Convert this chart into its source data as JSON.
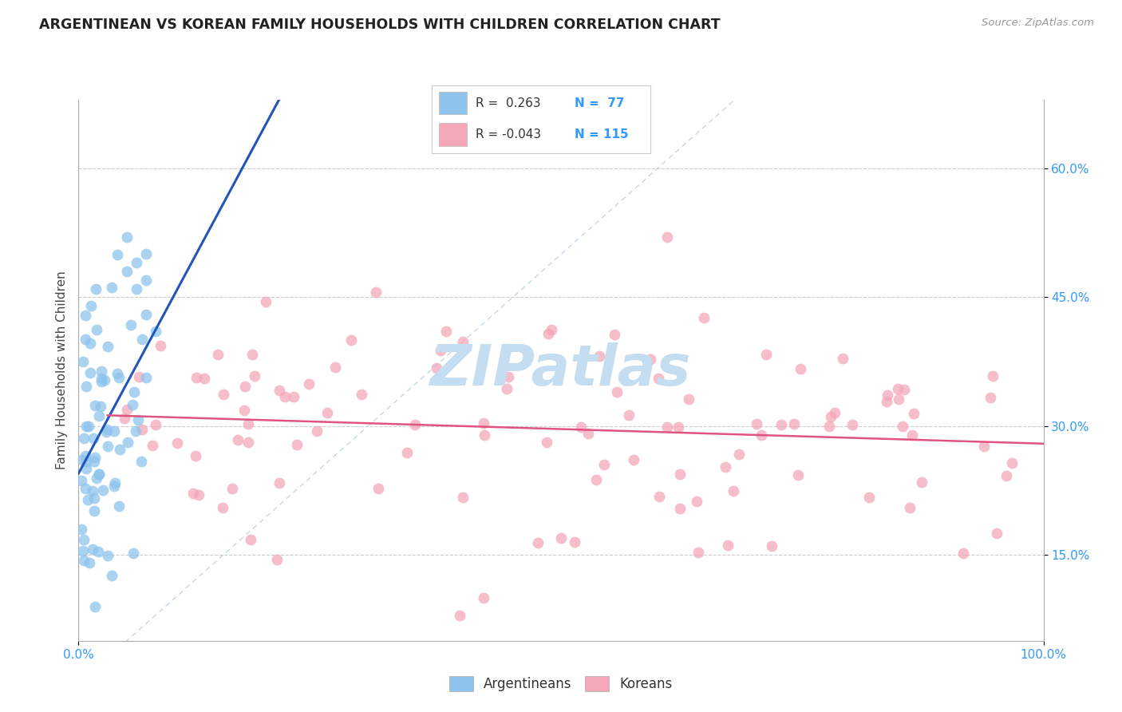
{
  "title": "ARGENTINEAN VS KOREAN FAMILY HOUSEHOLDS WITH CHILDREN CORRELATION CHART",
  "source": "Source: ZipAtlas.com",
  "ylabel": "Family Households with Children",
  "ytick_vals": [
    0.15,
    0.3,
    0.45,
    0.6
  ],
  "ytick_labels": [
    "15.0%",
    "30.0%",
    "45.0%",
    "60.0%"
  ],
  "xlim": [
    0.0,
    1.0
  ],
  "ylim": [
    0.05,
    0.68
  ],
  "color_arg": "#8ec4ed",
  "color_kor": "#f4a7b9",
  "line_color_arg": "#2255bb",
  "line_color_kor": "#e05580",
  "watermark": "ZIPatlas",
  "watermark_color": "#c5ddf0",
  "arg_seed": 123,
  "kor_seed": 456,
  "r_arg": 0.263,
  "n_arg": 77,
  "r_kor": -0.043,
  "n_kor": 115
}
